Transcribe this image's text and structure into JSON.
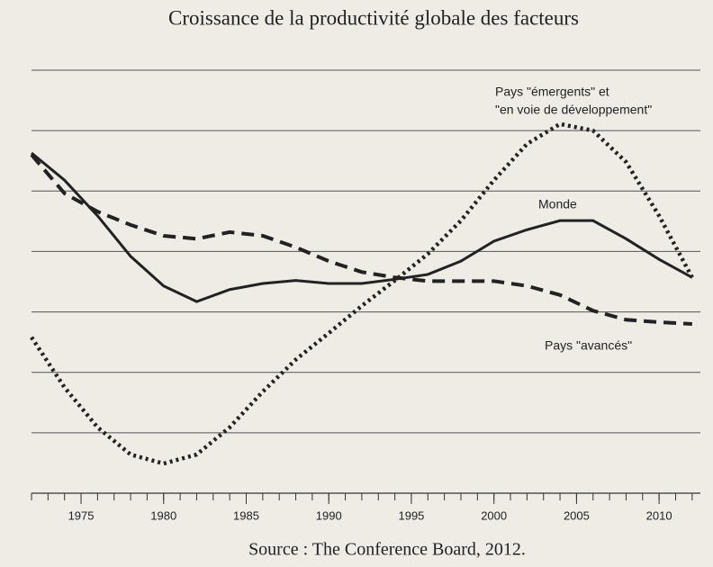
{
  "chart_data": {
    "type": "line",
    "title": "Croissance de la productivité globale des facteurs",
    "source": "Source : The Conference Board, 2012.",
    "x": [
      1972,
      1974,
      1976,
      1978,
      1980,
      1982,
      1984,
      1986,
      1988,
      1990,
      1992,
      1994,
      1996,
      1998,
      2000,
      2002,
      2004,
      2006,
      2008,
      2010,
      2012
    ],
    "series": [
      {
        "name": [
          "Monde"
        ],
        "color": "#222222",
        "dash": "solid",
        "values": [
          5.63,
          5.18,
          4.59,
          3.92,
          3.43,
          3.17,
          3.37,
          3.47,
          3.52,
          3.47,
          3.47,
          3.54,
          3.62,
          3.84,
          4.17,
          4.36,
          4.51,
          4.51,
          4.21,
          3.87,
          3.57
        ]
      },
      {
        "name": [
          "Pays \"avancés\""
        ],
        "color": "#222222",
        "dash": "dashed",
        "values": [
          5.6,
          4.96,
          4.66,
          4.44,
          4.26,
          4.21,
          4.32,
          4.26,
          4.07,
          3.84,
          3.66,
          3.57,
          3.51,
          3.51,
          3.51,
          3.43,
          3.28,
          3.02,
          2.87,
          2.83,
          2.8
        ]
      },
      {
        "name": [
          "Pays \"émergents\" et",
          "\"en voie de développement\""
        ],
        "color": "#222222",
        "dash": "dotted",
        "values": [
          2.58,
          1.75,
          1.09,
          0.64,
          0.49,
          0.64,
          1.09,
          1.68,
          2.21,
          2.65,
          3.1,
          3.52,
          3.96,
          4.51,
          5.18,
          5.78,
          6.11,
          6.0,
          5.48,
          4.59,
          3.57
        ]
      }
    ],
    "xlim": [
      1972,
      2012.5
    ],
    "xticks": [
      1975,
      1980,
      1985,
      1990,
      1995,
      2000,
      2005,
      2010
    ],
    "ylim": [
      0,
      7
    ],
    "yticks": [
      1,
      2,
      3,
      4,
      5,
      6,
      7
    ],
    "grid": true
  }
}
